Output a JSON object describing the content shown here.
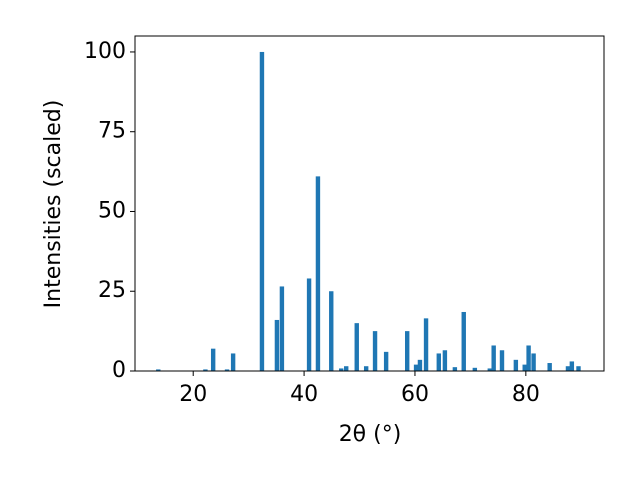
{
  "chart_data": {
    "type": "bar",
    "x_label": "2θ (°)",
    "y_label": "Intensities (scaled)",
    "x": [
      13.7,
      22.2,
      23.6,
      26.1,
      27.2,
      32.4,
      35.1,
      36.0,
      40.9,
      42.5,
      44.9,
      46.7,
      47.6,
      49.5,
      51.2,
      52.8,
      54.8,
      58.6,
      60.2,
      60.9,
      62.0,
      64.3,
      65.4,
      67.2,
      68.8,
      70.8,
      73.5,
      74.2,
      75.7,
      78.2,
      79.8,
      80.5,
      81.4,
      84.3,
      87.6,
      88.3,
      89.5
    ],
    "values": [
      0.5,
      0.5,
      7,
      0.5,
      5.5,
      100,
      16,
      26.5,
      29,
      61,
      25,
      0.8,
      1.5,
      15,
      1.5,
      12.5,
      6,
      12.5,
      2,
      3.5,
      16.5,
      5.5,
      6.5,
      1.2,
      18.5,
      1,
      0.8,
      8,
      6.5,
      3.5,
      2,
      8,
      5.5,
      2.5,
      1.5,
      3,
      1.5
    ],
    "color": "#1f77b4",
    "xlim": [
      9.5,
      94.1
    ],
    "xticks": [
      20,
      40,
      60,
      80
    ],
    "ylim": [
      0,
      105
    ],
    "yticks": [
      0,
      25,
      50,
      75,
      100
    ]
  }
}
